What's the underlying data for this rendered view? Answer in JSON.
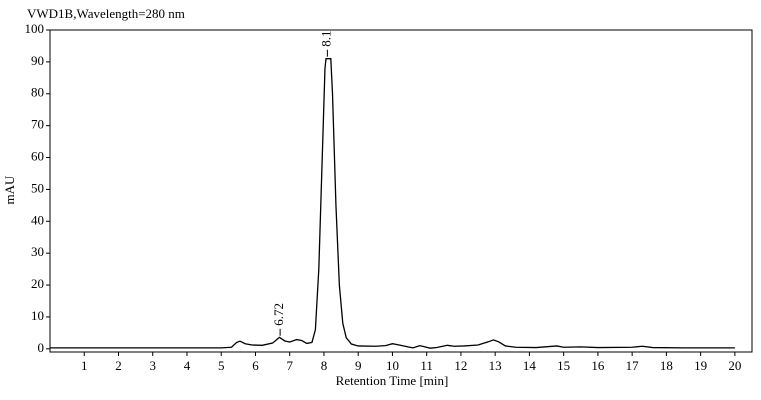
{
  "chart_data": {
    "type": "line",
    "title": "VWD1B,Wavelength=280 nm",
    "x_label": "Retention Time [min]",
    "y_label": "mAU",
    "xlim": [
      0,
      20.5
    ],
    "ylim": [
      -1,
      100
    ],
    "xticks": [
      1,
      2,
      3,
      4,
      5,
      6,
      7,
      8,
      9,
      10,
      11,
      12,
      13,
      14,
      15,
      16,
      17,
      18,
      19,
      20
    ],
    "yticks": [
      0,
      10,
      20,
      30,
      40,
      50,
      60,
      70,
      80,
      90,
      100
    ],
    "grid": false,
    "color": "#000000",
    "annotations": [
      {
        "x": 6.72,
        "text": "6.72"
      },
      {
        "x": 8.1,
        "text": "8.1"
      }
    ],
    "x": [
      0,
      1,
      2,
      3,
      4,
      5,
      5.3,
      5.45,
      5.55,
      5.7,
      5.9,
      6.2,
      6.5,
      6.7,
      6.85,
      7.0,
      7.2,
      7.35,
      7.5,
      7.65,
      7.75,
      7.85,
      7.95,
      8.03,
      8.06,
      8.2,
      8.25,
      8.35,
      8.45,
      8.55,
      8.65,
      8.8,
      9.0,
      9.5,
      9.8,
      10.0,
      10.2,
      10.45,
      10.6,
      10.8,
      10.95,
      11.1,
      11.3,
      11.6,
      11.8,
      12.1,
      12.5,
      12.8,
      12.95,
      13.1,
      13.3,
      13.6,
      14.2,
      14.8,
      15.0,
      15.5,
      16.0,
      17.0,
      17.3,
      17.6,
      18.5,
      19.5,
      20
    ],
    "values": [
      0.3,
      0.3,
      0.3,
      0.3,
      0.3,
      0.3,
      0.5,
      2,
      2.4,
      1.6,
      1.2,
      1.1,
      1.8,
      3.6,
      2.5,
      2.1,
      2.9,
      2.6,
      1.7,
      2.0,
      6,
      25,
      60,
      88,
      91,
      91,
      80,
      45,
      20,
      8,
      3.5,
      1.5,
      0.9,
      0.8,
      1.0,
      1.6,
      1.2,
      0.6,
      0.3,
      1.0,
      0.6,
      0.2,
      0.4,
      1.1,
      0.8,
      0.9,
      1.2,
      2.2,
      2.8,
      2.2,
      0.9,
      0.5,
      0.4,
      0.9,
      0.5,
      0.6,
      0.4,
      0.5,
      0.8,
      0.4,
      0.3,
      0.3,
      0.3
    ]
  }
}
